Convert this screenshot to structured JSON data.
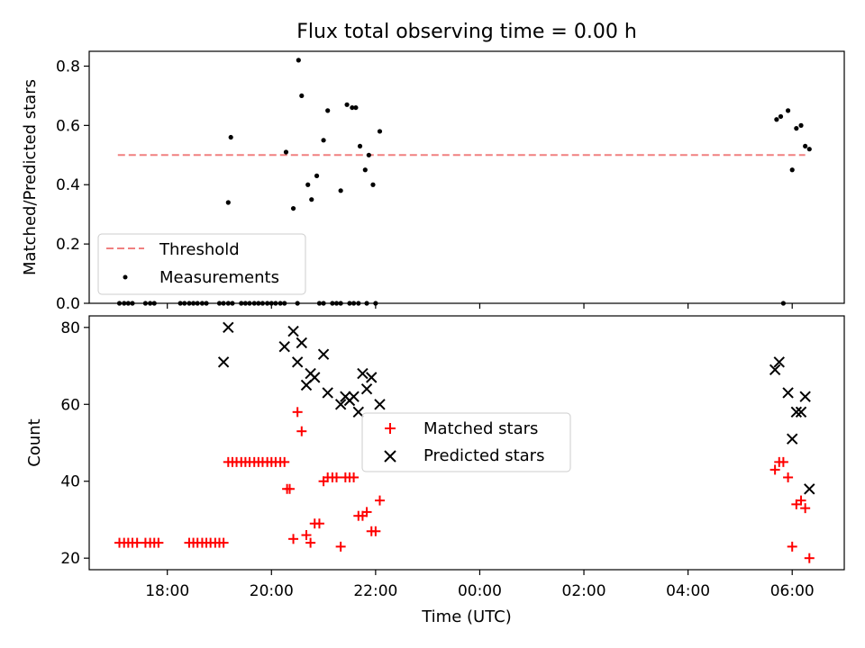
{
  "chart_data": [
    {
      "type": "scatter",
      "title": "Flux total observing time = 0.00 h",
      "xlabel": "",
      "ylabel": "Matched/Predicted stars",
      "ylim": [
        0,
        0.85
      ],
      "yticks": [
        0.0,
        0.2,
        0.4,
        0.6,
        0.8
      ],
      "ytick_labels": [
        "0.0",
        "0.2",
        "0.4",
        "0.6",
        "0.8"
      ],
      "legend_position": "lower-left",
      "series": [
        {
          "name": "Threshold",
          "kind": "dashed-line",
          "color": "#f08080",
          "x": [
            17.05,
            30.25
          ],
          "y": [
            0.5,
            0.5
          ]
        },
        {
          "name": "Measurements",
          "kind": "points",
          "color": "#000000",
          "x": [
            17.08,
            17.17,
            17.25,
            17.33,
            17.58,
            17.67,
            17.75,
            18.25,
            18.33,
            18.42,
            18.5,
            18.58,
            18.67,
            18.75,
            19.0,
            19.08,
            19.17,
            19.25,
            19.42,
            19.5,
            19.58,
            19.67,
            19.75,
            19.83,
            19.92,
            20.0,
            20.08,
            20.17,
            20.25,
            20.5,
            20.92,
            21.0,
            21.17,
            21.25,
            21.33,
            21.5,
            21.58,
            21.67,
            21.83,
            22.0,
            29.83,
            19.17,
            19.22,
            20.28,
            20.42,
            20.52,
            20.58,
            20.7,
            20.77,
            20.87,
            21.0,
            21.08,
            21.33,
            21.45,
            21.55,
            21.62,
            21.7,
            21.8,
            21.87,
            21.95,
            22.08,
            29.7,
            29.78,
            29.92,
            30.0,
            30.08,
            30.17,
            30.25,
            30.33
          ],
          "y": [
            0,
            0,
            0,
            0,
            0,
            0,
            0,
            0,
            0,
            0,
            0,
            0,
            0,
            0,
            0,
            0,
            0,
            0,
            0,
            0,
            0,
            0,
            0,
            0,
            0,
            0,
            0,
            0,
            0,
            0,
            0,
            0,
            0,
            0,
            0,
            0,
            0,
            0,
            0,
            0,
            0,
            0.34,
            0.56,
            0.51,
            0.32,
            0.82,
            0.7,
            0.4,
            0.35,
            0.43,
            0.55,
            0.65,
            0.38,
            0.67,
            0.66,
            0.66,
            0.53,
            0.45,
            0.5,
            0.4,
            0.58,
            0.62,
            0.63,
            0.65,
            0.45,
            0.59,
            0.6,
            0.53,
            0.52
          ]
        }
      ],
      "legend": [
        "Threshold",
        "Measurements"
      ]
    },
    {
      "type": "scatter",
      "title": "",
      "xlabel": "Time (UTC)",
      "ylabel": "Count",
      "xlim": [
        16.5,
        31.0
      ],
      "ylim": [
        17,
        83
      ],
      "yticks": [
        20,
        40,
        60,
        80
      ],
      "ytick_labels": [
        "20",
        "40",
        "60",
        "80"
      ],
      "xticks": [
        18,
        20,
        22,
        24,
        26,
        28,
        30
      ],
      "xtick_labels": [
        "18:00",
        "20:00",
        "22:00",
        "00:00",
        "02:00",
        "04:00",
        "06:00"
      ],
      "legend_position": "center",
      "series": [
        {
          "name": "Matched stars",
          "kind": "plus",
          "color": "#ff0000",
          "x": [
            17.08,
            17.17,
            17.25,
            17.33,
            17.42,
            17.58,
            17.67,
            17.75,
            17.83,
            18.42,
            18.5,
            18.58,
            18.67,
            18.75,
            18.83,
            18.92,
            19.0,
            19.08,
            19.17,
            19.25,
            19.33,
            19.42,
            19.5,
            19.58,
            19.67,
            19.75,
            19.83,
            19.92,
            20.0,
            20.08,
            20.17,
            20.25,
            20.3,
            20.35,
            20.42,
            20.5,
            20.58,
            20.67,
            20.75,
            20.83,
            20.92,
            21.0,
            21.08,
            21.17,
            21.25,
            21.33,
            21.42,
            21.5,
            21.58,
            21.67,
            21.75,
            21.83,
            21.92,
            22.0,
            22.08,
            29.67,
            29.75,
            29.83,
            29.92,
            30.0,
            30.08,
            30.17,
            30.25,
            30.33
          ],
          "y": [
            24,
            24,
            24,
            24,
            24,
            24,
            24,
            24,
            24,
            24,
            24,
            24,
            24,
            24,
            24,
            24,
            24,
            24,
            45,
            45,
            45,
            45,
            45,
            45,
            45,
            45,
            45,
            45,
            45,
            45,
            45,
            45,
            38,
            38,
            25,
            58,
            53,
            26,
            24,
            29,
            29,
            40,
            41,
            41,
            41,
            23,
            41,
            41,
            41,
            31,
            31,
            32,
            27,
            27,
            35,
            43,
            45,
            45,
            41,
            23,
            34,
            35,
            33,
            20
          ]
        },
        {
          "name": "Predicted stars",
          "kind": "cross",
          "color": "#000000",
          "x": [
            19.08,
            19.17,
            20.25,
            20.42,
            20.5,
            20.58,
            20.67,
            20.75,
            20.83,
            21.0,
            21.08,
            21.33,
            21.42,
            21.5,
            21.58,
            21.67,
            21.75,
            21.83,
            21.92,
            22.08,
            29.67,
            29.75,
            29.92,
            30.0,
            30.08,
            30.17,
            30.25,
            30.33
          ],
          "y": [
            71,
            80,
            75,
            79,
            71,
            76,
            65,
            68,
            67,
            73,
            63,
            60,
            62,
            61,
            62,
            58,
            68,
            64,
            67,
            60,
            69,
            71,
            63,
            51,
            58,
            58,
            62,
            38
          ]
        }
      ],
      "legend": [
        "Matched stars",
        "Predicted stars"
      ]
    }
  ]
}
